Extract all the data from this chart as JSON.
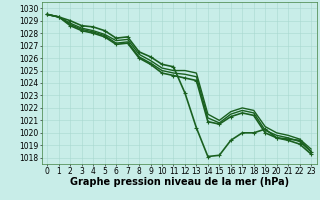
{
  "background_color": "#c8ede8",
  "grid_color": "#a8d8d0",
  "line_color": "#1a6020",
  "xlabel": "Graphe pression niveau de la mer (hPa)",
  "xlabel_fontsize": 7,
  "ylim": [
    1017.5,
    1030.5
  ],
  "xlim": [
    -0.5,
    23.5
  ],
  "yticks": [
    1018,
    1019,
    1020,
    1021,
    1022,
    1023,
    1024,
    1025,
    1026,
    1027,
    1028,
    1029,
    1030
  ],
  "xticks": [
    0,
    1,
    2,
    3,
    4,
    5,
    6,
    7,
    8,
    9,
    10,
    11,
    12,
    13,
    14,
    15,
    16,
    17,
    18,
    19,
    20,
    21,
    22,
    23
  ],
  "series": [
    {
      "y": [
        1029.5,
        1029.3,
        1029.0,
        1028.6,
        1028.5,
        1028.2,
        1027.6,
        1027.7,
        1026.5,
        1026.1,
        1025.5,
        1025.3,
        1023.2,
        1020.4,
        1018.1,
        1018.2,
        1019.4,
        1020.0,
        1020.0,
        1020.3,
        1019.6,
        1019.5,
        1019.4,
        1018.5
      ],
      "marker": true,
      "linewidth": 1.2
    },
    {
      "y": [
        1029.5,
        1029.3,
        1028.8,
        1028.4,
        1028.2,
        1027.9,
        1027.4,
        1027.5,
        1026.3,
        1025.8,
        1025.2,
        1025.0,
        1025.0,
        1024.8,
        1021.5,
        1021.0,
        1021.7,
        1022.0,
        1021.8,
        1020.5,
        1020.0,
        1019.8,
        1019.5,
        1018.7
      ],
      "marker": false,
      "linewidth": 1.0
    },
    {
      "y": [
        1029.5,
        1029.3,
        1028.7,
        1028.3,
        1028.1,
        1027.8,
        1027.2,
        1027.3,
        1026.1,
        1025.6,
        1025.0,
        1024.8,
        1024.7,
        1024.5,
        1021.2,
        1020.8,
        1021.5,
        1021.8,
        1021.6,
        1020.2,
        1019.8,
        1019.6,
        1019.3,
        1018.5
      ],
      "marker": false,
      "linewidth": 1.0
    },
    {
      "y": [
        1029.5,
        1029.3,
        1028.6,
        1028.2,
        1028.0,
        1027.7,
        1027.1,
        1027.2,
        1026.0,
        1025.5,
        1024.8,
        1024.6,
        1024.4,
        1024.2,
        1020.9,
        1020.7,
        1021.3,
        1021.6,
        1021.4,
        1020.0,
        1019.6,
        1019.4,
        1019.1,
        1018.3
      ],
      "marker": true,
      "linewidth": 1.2
    }
  ],
  "tick_fontsize": 5.5,
  "figwidth": 3.2,
  "figheight": 2.0,
  "dpi": 100
}
